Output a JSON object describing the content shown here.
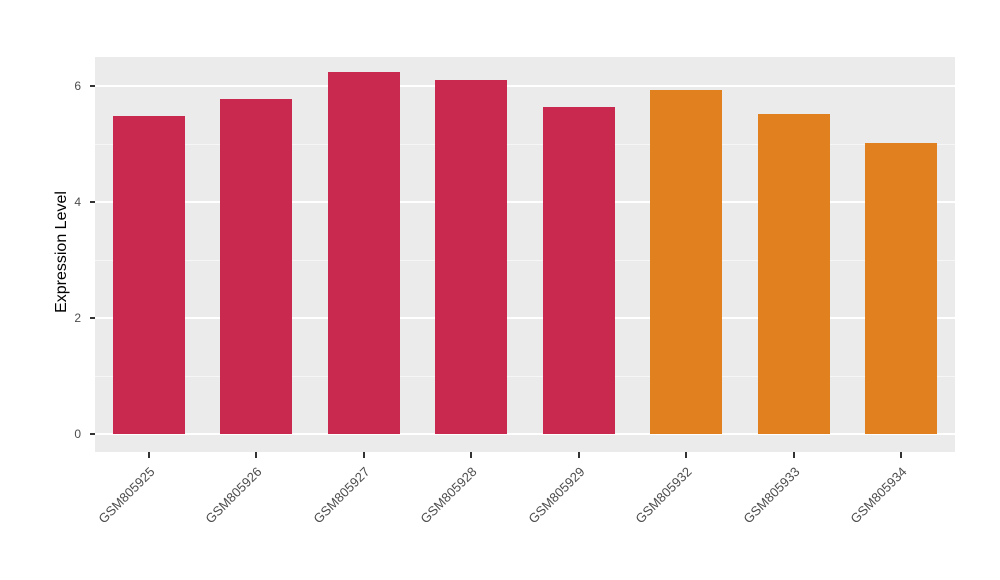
{
  "chart_data": {
    "type": "bar",
    "title": "",
    "ylabel": "Expression Level",
    "xlabel": "",
    "categories": [
      "GSM805925",
      "GSM805926",
      "GSM805927",
      "GSM805928",
      "GSM805929",
      "GSM805932",
      "GSM805933",
      "GSM805934"
    ],
    "values": [
      5.48,
      5.78,
      6.25,
      6.11,
      5.63,
      5.93,
      5.52,
      5.02
    ],
    "bar_colors": [
      "#C9294E",
      "#C9294E",
      "#C9294E",
      "#C9294E",
      "#C9294E",
      "#E0801F",
      "#E0801F",
      "#E0801F"
    ],
    "group_colors": {
      "crimson": "#C9294E",
      "orange": "#E0801F"
    },
    "ylim": [
      -0.3,
      6.5
    ],
    "yticks": [
      0,
      2,
      4,
      6
    ],
    "ytick_labels": [
      "0",
      "2",
      "4",
      "6"
    ],
    "minor_ticks": [
      1,
      3,
      5
    ],
    "grid": true,
    "legend": "none",
    "panel_bg": "#EBEBEB",
    "grid_color": "#FFFFFF"
  }
}
